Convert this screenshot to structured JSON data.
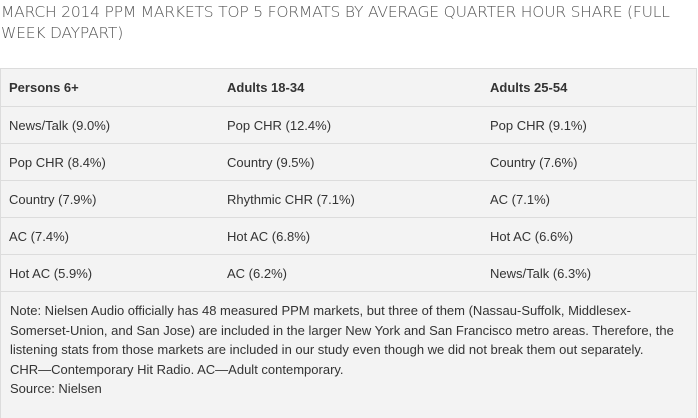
{
  "title": "MARCH 2014 PPM MARKETS TOP 5 FORMATS BY AVERAGE QUARTER HOUR SHARE (FULL WEEK DAYPART)",
  "table": {
    "headers": [
      "Persons 6+",
      "Adults 18-34",
      "Adults 25-54"
    ],
    "rows": [
      [
        "News/Talk (9.0%)",
        "Pop CHR (12.4%)",
        "Pop CHR (9.1%)"
      ],
      [
        "Pop CHR (8.4%)",
        "Country (9.5%)",
        "Country (7.6%)"
      ],
      [
        "Country (7.9%)",
        "Rhythmic CHR (7.1%)",
        "AC (7.1%)"
      ],
      [
        "AC (7.4%)",
        "Hot AC (6.8%)",
        "Hot AC (6.6%)"
      ],
      [
        "Hot AC (5.9%)",
        "AC (6.2%)",
        "News/Talk (6.3%)"
      ]
    ]
  },
  "notes": {
    "note": "Note: Nielsen Audio officially has 48 measured PPM markets, but three of them (Nassau-Suffolk, Middlesex-Somerset-Union, and San Jose) are included in the larger New York and San Francisco metro areas. Therefore, the listening stats from those markets are included in our study even though we did not break them out separately.",
    "abbreviations": "CHR—Contemporary Hit Radio. AC—Adult contemporary.",
    "source": "Source: Nielsen"
  }
}
